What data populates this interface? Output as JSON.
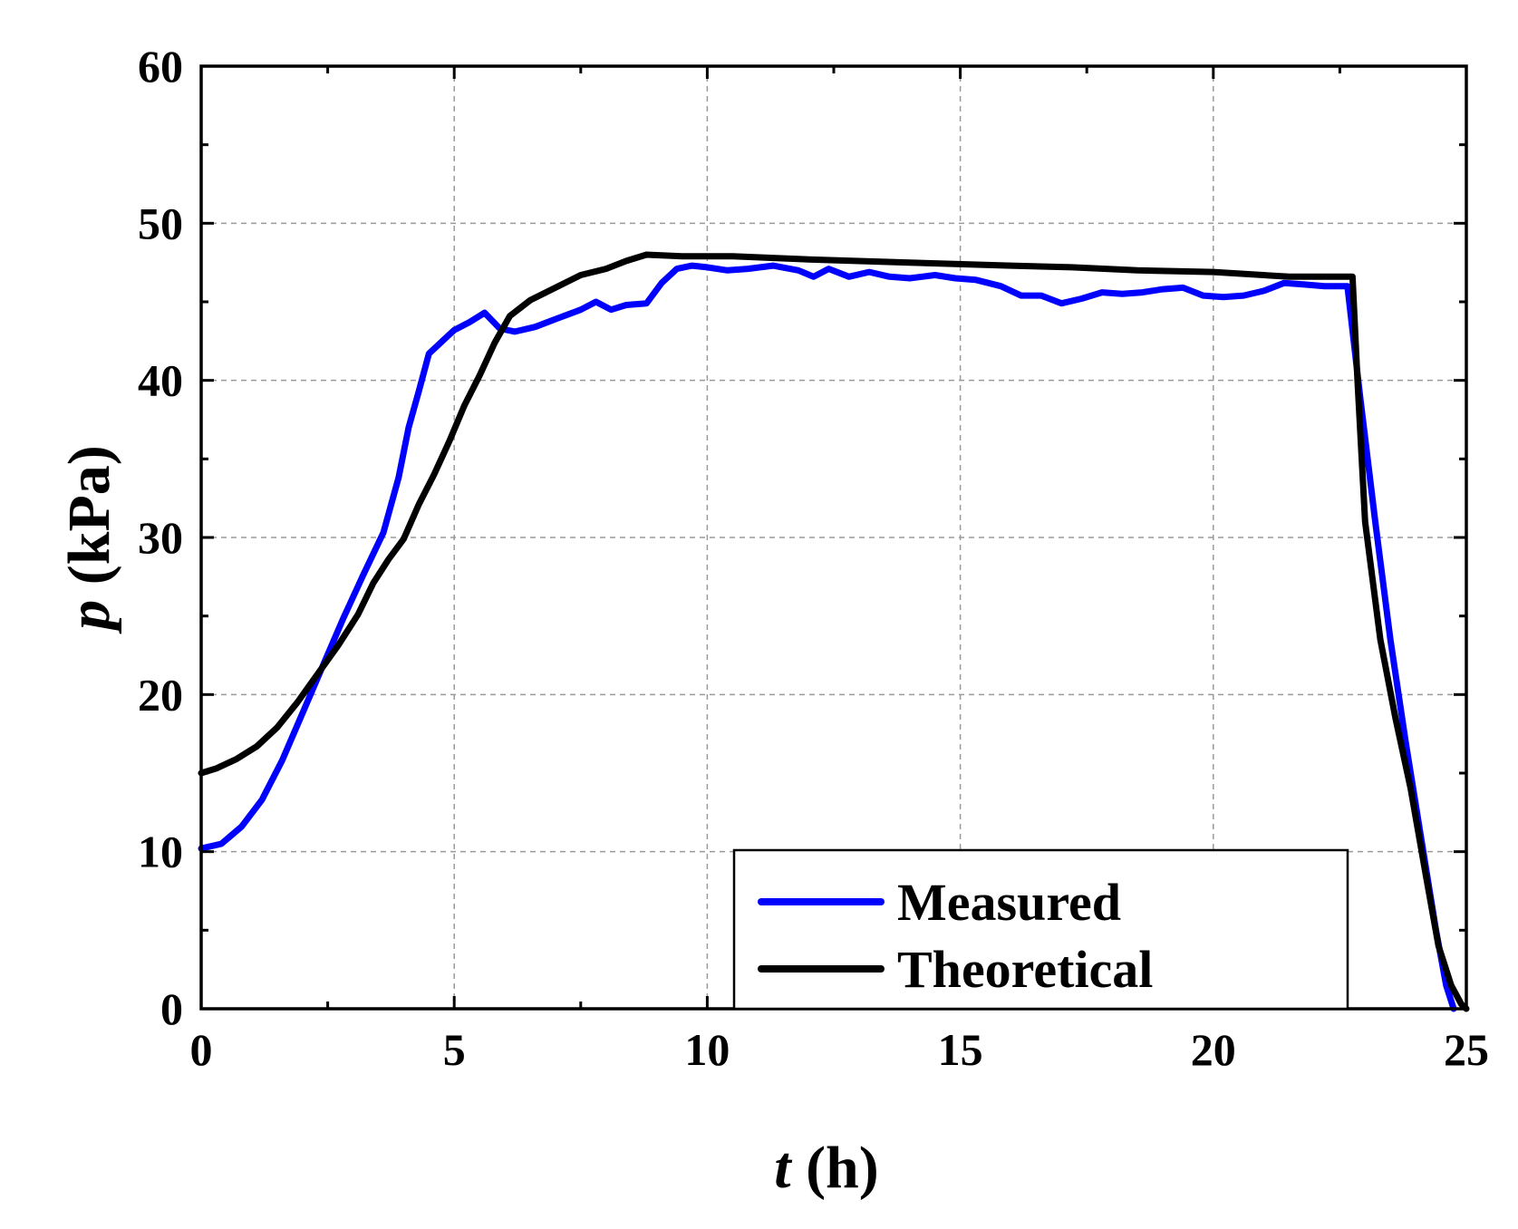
{
  "chart_data": {
    "type": "line",
    "title": "",
    "xlabel": {
      "var": "t",
      "unit": " (h)"
    },
    "ylabel": {
      "var": "p",
      "unit": " (kPa)"
    },
    "xlim": [
      0,
      25
    ],
    "ylim": [
      0,
      60
    ],
    "xticks": [
      0,
      5,
      10,
      15,
      20,
      25
    ],
    "xtick_labels": [
      "0",
      "5",
      "10",
      "15",
      "20",
      "25"
    ],
    "yticks": [
      0,
      10,
      20,
      30,
      40,
      50,
      60
    ],
    "ytick_labels": [
      "0",
      "10",
      "20",
      "30",
      "40",
      "50",
      "60"
    ],
    "grid": true,
    "legend_position": "bottom-right",
    "series": [
      {
        "name": "Measured",
        "color": "#0000ff",
        "points": [
          [
            0,
            10.2
          ],
          [
            0.4,
            10.5
          ],
          [
            0.8,
            11.6
          ],
          [
            1.2,
            13.3
          ],
          [
            1.6,
            15.8
          ],
          [
            2.0,
            18.8
          ],
          [
            2.4,
            21.8
          ],
          [
            2.8,
            24.8
          ],
          [
            3.2,
            27.6
          ],
          [
            3.6,
            30.3
          ],
          [
            3.9,
            33.8
          ],
          [
            4.1,
            37.0
          ],
          [
            4.3,
            39.3
          ],
          [
            4.5,
            41.7
          ],
          [
            4.8,
            42.6
          ],
          [
            5.0,
            43.2
          ],
          [
            5.3,
            43.7
          ],
          [
            5.6,
            44.3
          ],
          [
            5.9,
            43.3
          ],
          [
            6.2,
            43.1
          ],
          [
            6.6,
            43.4
          ],
          [
            7.0,
            43.9
          ],
          [
            7.5,
            44.5
          ],
          [
            7.8,
            45.0
          ],
          [
            8.1,
            44.5
          ],
          [
            8.4,
            44.8
          ],
          [
            8.8,
            44.9
          ],
          [
            9.1,
            46.2
          ],
          [
            9.4,
            47.1
          ],
          [
            9.7,
            47.3
          ],
          [
            10.0,
            47.2
          ],
          [
            10.4,
            47.0
          ],
          [
            10.8,
            47.1
          ],
          [
            11.3,
            47.3
          ],
          [
            11.8,
            47.0
          ],
          [
            12.1,
            46.6
          ],
          [
            12.4,
            47.1
          ],
          [
            12.8,
            46.6
          ],
          [
            13.2,
            46.9
          ],
          [
            13.6,
            46.6
          ],
          [
            14.0,
            46.5
          ],
          [
            14.5,
            46.7
          ],
          [
            14.9,
            46.5
          ],
          [
            15.3,
            46.4
          ],
          [
            15.8,
            46.0
          ],
          [
            16.2,
            45.4
          ],
          [
            16.6,
            45.4
          ],
          [
            17.0,
            44.9
          ],
          [
            17.4,
            45.2
          ],
          [
            17.8,
            45.6
          ],
          [
            18.2,
            45.5
          ],
          [
            18.6,
            45.6
          ],
          [
            19.0,
            45.8
          ],
          [
            19.4,
            45.9
          ],
          [
            19.8,
            45.4
          ],
          [
            20.2,
            45.3
          ],
          [
            20.6,
            45.4
          ],
          [
            21.0,
            45.7
          ],
          [
            21.4,
            46.2
          ],
          [
            21.8,
            46.1
          ],
          [
            22.2,
            46.0
          ],
          [
            22.65,
            46.0
          ],
          [
            22.9,
            39.0
          ],
          [
            23.2,
            31.0
          ],
          [
            23.5,
            23.5
          ],
          [
            23.8,
            17.0
          ],
          [
            24.1,
            11.0
          ],
          [
            24.4,
            5.0
          ],
          [
            24.6,
            1.5
          ],
          [
            24.75,
            0
          ]
        ]
      },
      {
        "name": "Theoretical",
        "color": "#000000",
        "points": [
          [
            0,
            15.0
          ],
          [
            0.3,
            15.3
          ],
          [
            0.7,
            15.9
          ],
          [
            1.1,
            16.7
          ],
          [
            1.5,
            17.9
          ],
          [
            1.9,
            19.5
          ],
          [
            2.3,
            21.3
          ],
          [
            2.7,
            23.1
          ],
          [
            3.1,
            25.1
          ],
          [
            3.4,
            27.1
          ],
          [
            3.7,
            28.6
          ],
          [
            4.0,
            29.9
          ],
          [
            4.3,
            32.1
          ],
          [
            4.6,
            34.0
          ],
          [
            4.9,
            36.1
          ],
          [
            5.2,
            38.4
          ],
          [
            5.5,
            40.3
          ],
          [
            5.8,
            42.4
          ],
          [
            6.1,
            44.1
          ],
          [
            6.5,
            45.1
          ],
          [
            7.0,
            45.9
          ],
          [
            7.5,
            46.7
          ],
          [
            8.0,
            47.1
          ],
          [
            8.4,
            47.6
          ],
          [
            8.8,
            48.0
          ],
          [
            9.5,
            47.9
          ],
          [
            10.5,
            47.9
          ],
          [
            12,
            47.7
          ],
          [
            14,
            47.5
          ],
          [
            16,
            47.3
          ],
          [
            17.2,
            47.2
          ],
          [
            18.5,
            47.0
          ],
          [
            20,
            46.9
          ],
          [
            21.5,
            46.6
          ],
          [
            22.75,
            46.6
          ],
          [
            22.85,
            40.0
          ],
          [
            23.0,
            31.0
          ],
          [
            23.3,
            23.5
          ],
          [
            23.6,
            18.5
          ],
          [
            23.9,
            14.0
          ],
          [
            24.2,
            8.5
          ],
          [
            24.45,
            4.0
          ],
          [
            24.7,
            1.5
          ],
          [
            24.9,
            0.3
          ],
          [
            25.0,
            0
          ]
        ]
      }
    ]
  }
}
